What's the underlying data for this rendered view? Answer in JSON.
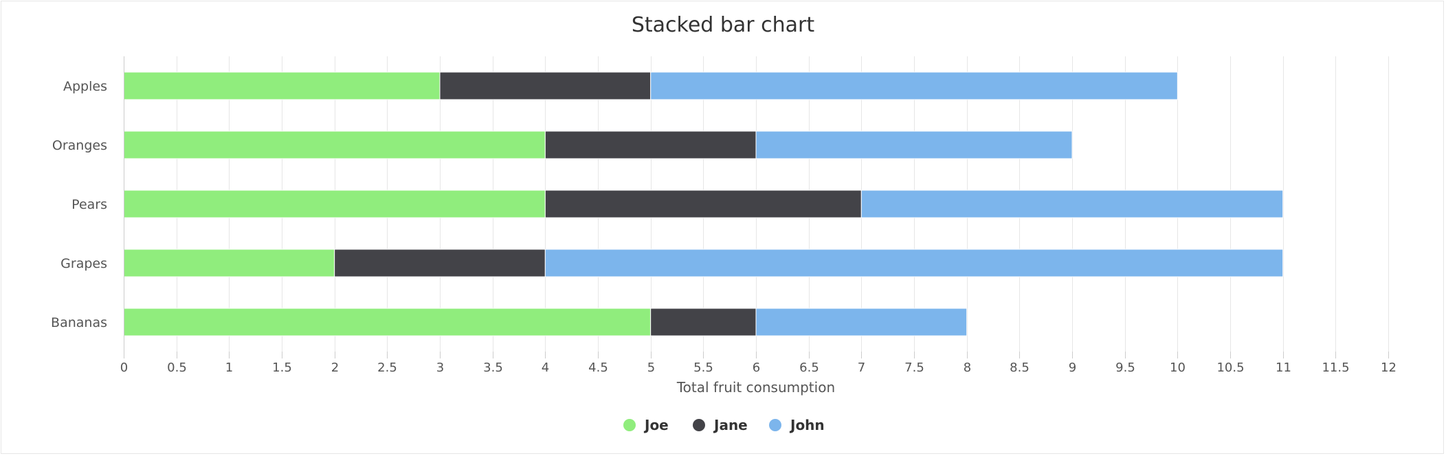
{
  "chart_data": {
    "type": "bar",
    "orientation": "horizontal",
    "stacked": true,
    "title": "Stacked bar chart",
    "xlabel": "Total fruit consumption",
    "ylabel": "",
    "categories": [
      "Apples",
      "Oranges",
      "Pears",
      "Grapes",
      "Bananas"
    ],
    "series": [
      {
        "name": "Joe",
        "color": "#90ed7d",
        "values": [
          3,
          4,
          4,
          2,
          5
        ]
      },
      {
        "name": "Jane",
        "color": "#434348",
        "values": [
          2,
          2,
          3,
          2,
          1
        ]
      },
      {
        "name": "John",
        "color": "#7cb5ec",
        "values": [
          5,
          3,
          4,
          7,
          2
        ]
      }
    ],
    "xlim": [
      0,
      12
    ],
    "tick_step": 0.5,
    "ticks": [
      "0",
      "0.5",
      "1",
      "1.5",
      "2",
      "2.5",
      "3",
      "3.5",
      "4",
      "4.5",
      "5",
      "5.5",
      "6",
      "6.5",
      "7",
      "7.5",
      "8",
      "8.5",
      "9",
      "9.5",
      "10",
      "10.5",
      "11",
      "11.5",
      "12"
    ],
    "grid": true,
    "legend_position": "bottom-center"
  }
}
